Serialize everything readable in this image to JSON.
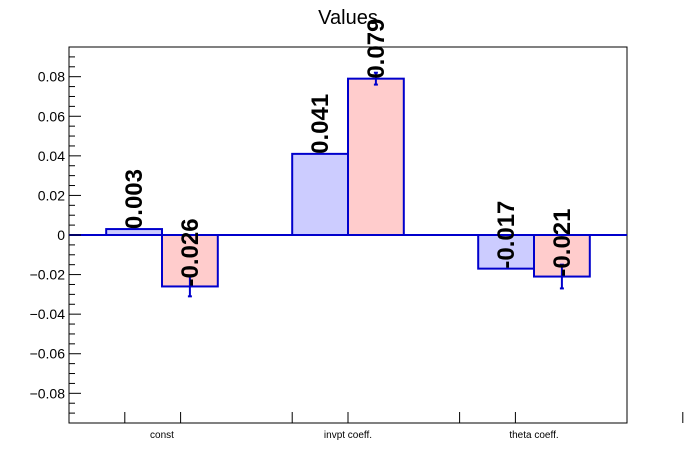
{
  "chart_data": {
    "type": "bar",
    "title": "Values",
    "xlabel": "",
    "ylabel": "",
    "ylim": [
      -0.095,
      0.095
    ],
    "yticks": [
      {
        "value": 0.08,
        "label": "0.08"
      },
      {
        "value": 0.06,
        "label": "0.06"
      },
      {
        "value": 0.04,
        "label": "0.04"
      },
      {
        "value": 0.02,
        "label": "0.02"
      },
      {
        "value": 0.0,
        "label": "0"
      },
      {
        "value": -0.02,
        "label": "−0.02"
      },
      {
        "value": -0.04,
        "label": "−0.04"
      },
      {
        "value": -0.06,
        "label": "−0.06"
      },
      {
        "value": -0.08,
        "label": "−0.08"
      }
    ],
    "categories": [
      "const",
      "invpt coeff.",
      "theta coeff."
    ],
    "series": [
      {
        "color": "#ccccff",
        "values": [
          0.003,
          0.041,
          -0.017
        ],
        "labels": [
          "0.003",
          "0.041",
          "-0.017"
        ],
        "errors": [
          0,
          0,
          0
        ]
      },
      {
        "color": "#ffcccc",
        "values": [
          -0.026,
          0.079,
          -0.021
        ],
        "labels": [
          "-0.026",
          "0.079",
          "-0.021"
        ],
        "errors": [
          0.005,
          0.003,
          0.006
        ]
      }
    ],
    "bar_edge_color": "#0000cc",
    "grid": false,
    "legend": "none"
  }
}
